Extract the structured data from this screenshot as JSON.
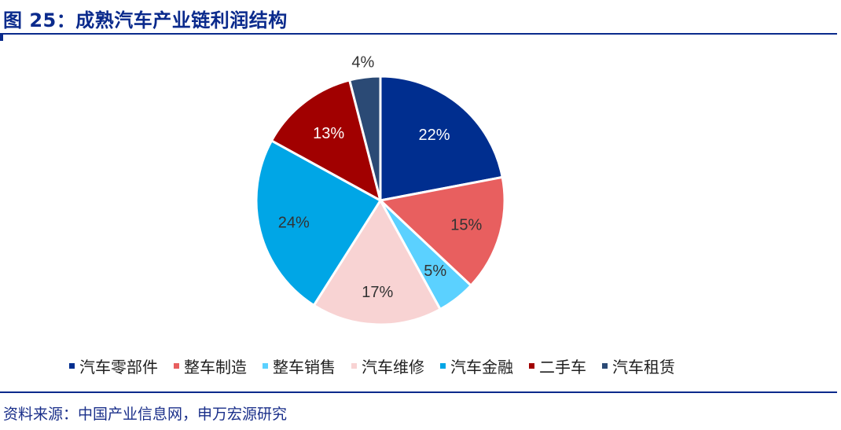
{
  "title": "图 25：成熟汽车产业链利润结构",
  "source": "资料来源：中国产业信息网，申万宏源研究",
  "chart_data": {
    "type": "pie",
    "title": "",
    "categories": [
      "汽车零部件",
      "整车制造",
      "整车销售",
      "汽车维修",
      "汽车金融",
      "二手车",
      "汽车租赁"
    ],
    "values": [
      22,
      15,
      5,
      17,
      24,
      13,
      4
    ],
    "value_labels": [
      "22%",
      "15%",
      "5%",
      "17%",
      "24%",
      "13%",
      "4%"
    ],
    "unit": "%",
    "colors": [
      "#002e8f",
      "#e85f5f",
      "#5bd1ff",
      "#f8d3d3",
      "#00a6e6",
      "#a10000",
      "#2b4a75"
    ],
    "label_colors": [
      "#ffffff",
      "#333333",
      "#333333",
      "#333333",
      "#333333",
      "#ffffff",
      "#333333"
    ],
    "start_angle_deg": 0,
    "direction": "clockwise",
    "legend_position": "bottom"
  }
}
